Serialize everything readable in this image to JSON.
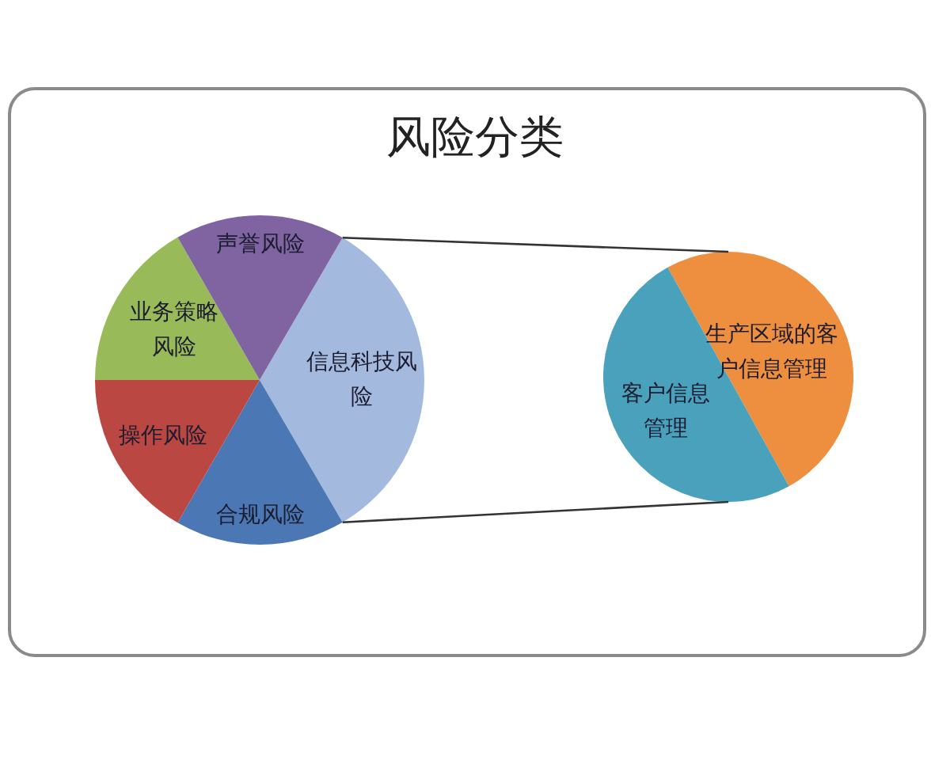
{
  "chart_data": [
    {
      "type": "pie",
      "title": "风险分类",
      "categories": [
        "信息科技风险",
        "合规风险",
        "操作风险",
        "业务策略风险",
        "声誉风险"
      ],
      "values": [
        33.2,
        16.7,
        16.7,
        16.7,
        16.7
      ],
      "colors": [
        "#a4b9de",
        "#4b78b5",
        "#bb4743",
        "#99ba58",
        "#7f64a1"
      ]
    },
    {
      "type": "pie",
      "categories": [
        "生产区域的客户信息管理",
        "客户信息管理"
      ],
      "values": [
        50,
        50
      ],
      "colors": [
        "#ee8f3f",
        "#49a1bc"
      ]
    }
  ]
}
